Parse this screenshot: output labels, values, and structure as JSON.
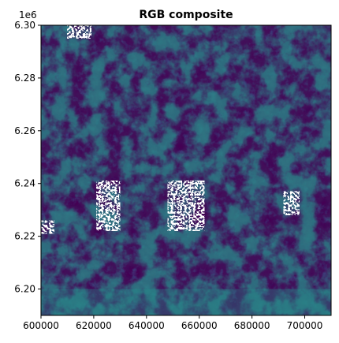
{
  "chart_data": {
    "type": "heatmap",
    "title": "RGB composite",
    "xlabel": "",
    "ylabel": "",
    "xlim": [
      600000,
      710000
    ],
    "ylim": [
      6190000,
      6300000
    ],
    "y_offset_label": "1e6",
    "x_ticks": [
      600000,
      620000,
      640000,
      660000,
      680000,
      700000
    ],
    "x_tick_labels": [
      "600000",
      "620000",
      "640000",
      "660000",
      "680000",
      "700000"
    ],
    "y_ticks": [
      6200000,
      6220000,
      6240000,
      6260000,
      6280000,
      6300000
    ],
    "y_tick_labels": [
      "6.20",
      "6.22",
      "6.24",
      "6.26",
      "6.28",
      "6.30"
    ],
    "grid": false,
    "colormap": "viridis-like",
    "colors": {
      "dark": "#440154",
      "mid_dark": "#3b528b",
      "mid": "#2c7f8e",
      "teal": "#21918c",
      "nodata": "#ffffff"
    },
    "nodata_regions": [
      {
        "name": "central-west",
        "x": [
          621000,
          630000
        ],
        "y": [
          6222000,
          6241000
        ]
      },
      {
        "name": "central",
        "x": [
          648000,
          662000
        ],
        "y": [
          6222000,
          6241000
        ]
      },
      {
        "name": "east",
        "x": [
          692000,
          698000
        ],
        "y": [
          6228000,
          6237000
        ]
      },
      {
        "name": "west-edge",
        "x": [
          600000,
          605000
        ],
        "y": [
          6221000,
          6226000
        ]
      },
      {
        "name": "top-left",
        "x": [
          610000,
          619000
        ],
        "y": [
          6295000,
          6300000
        ]
      }
    ]
  }
}
